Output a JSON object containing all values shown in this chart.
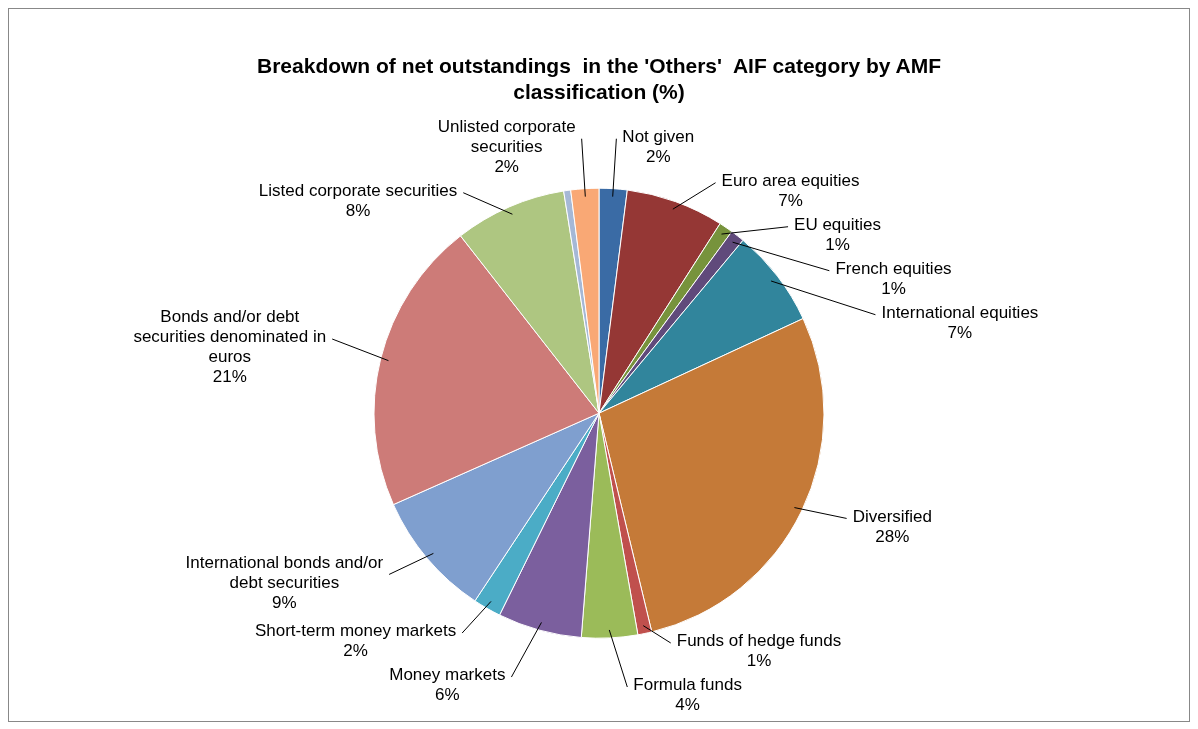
{
  "chart_data": {
    "type": "pie",
    "title": "Breakdown of net outstandings  in the 'Others'  AIF category by AMF classification (%)",
    "categories": [
      "Not given",
      "Euro area equities",
      "EU equities",
      "French equities",
      "International equities",
      "Diversified",
      "Funds of hedge funds",
      "Formula funds",
      "Money markets",
      "Short-term money markets",
      "International bonds and/or debt securities",
      "Bonds and/or debt securities denominated in euros",
      "Listed corporate securities",
      null,
      "Unlisted corporate securities"
    ],
    "values": [
      2,
      7,
      1,
      1,
      7,
      28,
      1,
      4,
      6,
      2,
      9,
      21,
      8,
      0.5,
      2
    ],
    "value_labels": [
      "2%",
      "7%",
      "1%",
      "1%",
      "7%",
      "28%",
      "1%",
      "4%",
      "6%",
      "2%",
      "9%",
      "21%",
      "8%",
      null,
      "2%"
    ],
    "colors": [
      "#3a6ba5",
      "#953735",
      "#77933c",
      "#604a7b",
      "#31859c",
      "#c57a38",
      "#c0504d",
      "#9bbb59",
      "#7b5f9e",
      "#4bacc6",
      "#7f9fcf",
      "#cd7b78",
      "#aec681",
      "#a5b8d6",
      "#f9a875"
    ],
    "legend": false
  }
}
